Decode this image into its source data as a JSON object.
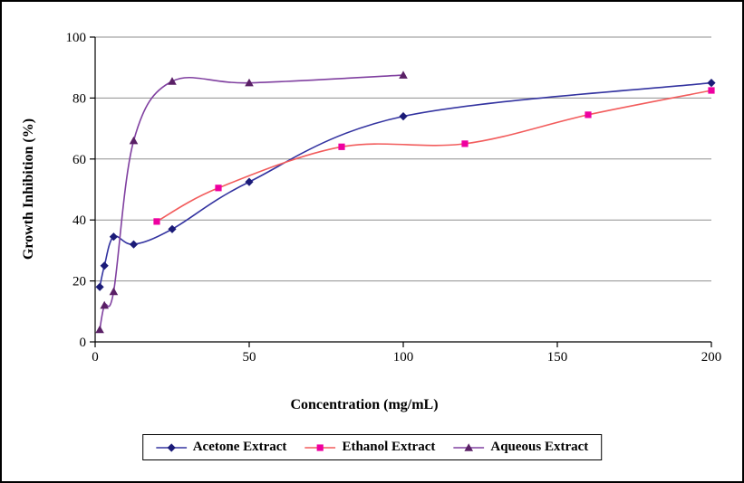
{
  "chart_data": {
    "type": "line",
    "title": "",
    "xlabel": "Concentration (mg/mL)",
    "ylabel": "Growth Inhibition  (%)",
    "xlim": [
      0,
      200
    ],
    "ylim": [
      0,
      100
    ],
    "x_ticks": [
      0,
      50,
      100,
      150,
      200
    ],
    "y_ticks": [
      0,
      20,
      40,
      60,
      80,
      100
    ],
    "grid": "horizontal",
    "gridline_color": "#8f8f8f",
    "axis_color": "#000000",
    "background_color": "#ffffff",
    "legend_position": "bottom",
    "line_style": "smoothed",
    "series": [
      {
        "name": "Acetone Extract",
        "marker": "diamond",
        "line_color": "#3333a0",
        "marker_color": "#1b1b78",
        "points": [
          [
            1.5,
            18
          ],
          [
            3,
            25
          ],
          [
            6,
            34.5
          ],
          [
            12.5,
            32
          ],
          [
            25,
            37
          ],
          [
            50,
            52.5
          ],
          [
            100,
            74
          ],
          [
            200,
            85
          ]
        ]
      },
      {
        "name": "Ethanol Extract",
        "marker": "square",
        "line_color": "#f25c5c",
        "marker_color": "#ee00a0",
        "points": [
          [
            20,
            39.5
          ],
          [
            40,
            50.5
          ],
          [
            80,
            64
          ],
          [
            120,
            65
          ],
          [
            160,
            74.5
          ],
          [
            200,
            82.5
          ]
        ]
      },
      {
        "name": "Aqueous Extract",
        "marker": "triangle",
        "line_color": "#8040a0",
        "marker_color": "#5a2066",
        "points": [
          [
            1.5,
            4
          ],
          [
            3,
            12
          ],
          [
            6,
            16.5
          ],
          [
            12.5,
            66
          ],
          [
            25,
            85.5
          ],
          [
            50,
            85
          ],
          [
            100,
            87.5
          ]
        ]
      }
    ]
  }
}
